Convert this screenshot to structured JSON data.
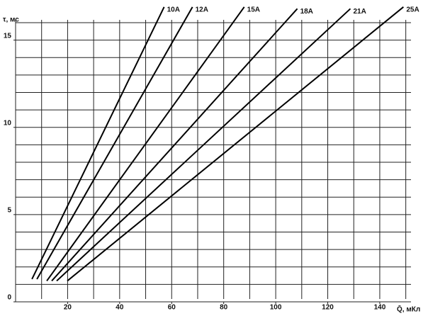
{
  "chart_data": {
    "type": "line",
    "y_label": "τ, мс",
    "x_label": "Q̄, мКл",
    "xlim": [
      0,
      152
    ],
    "ylim": [
      0,
      16
    ],
    "xticks": [
      20,
      40,
      60,
      80,
      100,
      120,
      140
    ],
    "yticks": [
      0,
      5,
      10,
      15
    ],
    "grid": true,
    "xgrid": [
      0,
      10,
      20,
      30,
      40,
      50,
      60,
      70,
      80,
      90,
      100,
      110,
      120,
      130,
      140,
      150
    ],
    "ygrid": [
      0,
      1,
      2,
      3,
      4,
      5,
      6,
      7,
      8,
      9,
      10,
      11,
      12,
      13,
      14,
      15,
      16
    ],
    "series": [
      {
        "name": "10A",
        "color": "#000000",
        "x": [
          6.3,
          57.1
        ],
        "values": [
          1.3,
          16.9
        ]
      },
      {
        "name": "12A",
        "color": "#000000",
        "x": [
          8.2,
          68.0
        ],
        "values": [
          1.3,
          16.9
        ]
      },
      {
        "name": "15A",
        "color": "#000000",
        "x": [
          12.0,
          87.9
        ],
        "values": [
          1.2,
          16.9
        ]
      },
      {
        "name": "18A",
        "color": "#000000",
        "x": [
          13.9,
          108.3
        ],
        "values": [
          1.2,
          16.8
        ]
      },
      {
        "name": "21A",
        "color": "#000000",
        "x": [
          15.8,
          128.7
        ],
        "values": [
          1.2,
          16.8
        ]
      },
      {
        "name": "25A",
        "color": "#000000",
        "x": [
          19.9,
          149.1
        ],
        "values": [
          1.2,
          16.9
        ]
      }
    ]
  }
}
